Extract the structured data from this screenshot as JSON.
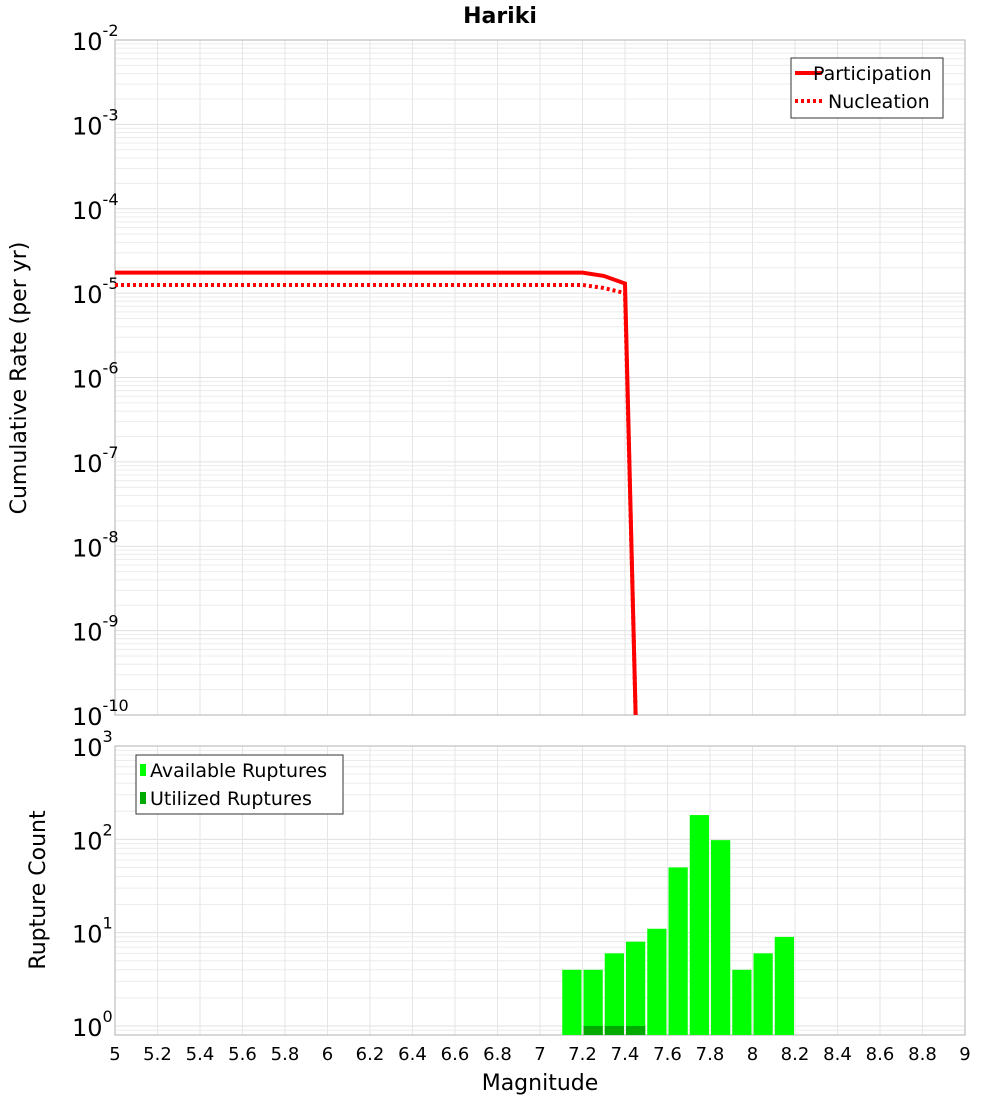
{
  "chart_data": [
    {
      "type": "line",
      "title": "Hariki",
      "xlabel": "",
      "ylabel": "Cumulative Rate (per yr)",
      "xlim": [
        5,
        9
      ],
      "ylim": [
        1e-10,
        0.01
      ],
      "yscale": "log",
      "grid": true,
      "legend_position": "top-right",
      "series": [
        {
          "name": "Participation",
          "style": "solid",
          "color": "#ff0000",
          "x": [
            5,
            7.2,
            7.3,
            7.4,
            7.45
          ],
          "y": [
            1.75e-05,
            1.75e-05,
            1.6e-05,
            1.3e-05,
            1e-10
          ]
        },
        {
          "name": "Nucleation",
          "style": "dotted",
          "color": "#ff0000",
          "x": [
            5,
            7.2,
            7.3,
            7.4,
            7.45
          ],
          "y": [
            1.25e-05,
            1.25e-05,
            1.15e-05,
            1e-05,
            1e-10
          ]
        }
      ]
    },
    {
      "type": "bar",
      "xlabel": "Magnitude",
      "ylabel": "Rupture Count",
      "xlim": [
        5,
        9
      ],
      "ylim": [
        0.8,
        1000
      ],
      "yscale": "log",
      "grid": true,
      "legend_position": "top-left",
      "x": [
        7.15,
        7.25,
        7.35,
        7.45,
        7.55,
        7.65,
        7.75,
        7.85,
        7.95,
        8.05,
        8.15
      ],
      "series": [
        {
          "name": "Available Ruptures",
          "color": "#00ff00",
          "values": [
            4,
            4,
            6,
            8,
            11,
            50,
            182,
            98,
            4,
            6,
            9
          ]
        },
        {
          "name": "Utilized Ruptures",
          "color": "#00aa00",
          "values": [
            0,
            1,
            1,
            1,
            0,
            0,
            0,
            0,
            0,
            0,
            0
          ]
        }
      ]
    }
  ],
  "x_ticks": [
    "5",
    "5.2",
    "5.4",
    "5.6",
    "5.8",
    "6",
    "6.2",
    "6.4",
    "6.6",
    "6.8",
    "7",
    "7.2",
    "7.4",
    "7.6",
    "7.8",
    "8",
    "8.2",
    "8.4",
    "8.6",
    "8.8",
    "9"
  ],
  "top_y_exponents": [
    "-2",
    "-3",
    "-4",
    "-5",
    "-6",
    "-7",
    "-8",
    "-9",
    "-10"
  ],
  "bottom_y_exponents": [
    "3",
    "2",
    "1",
    "0"
  ]
}
